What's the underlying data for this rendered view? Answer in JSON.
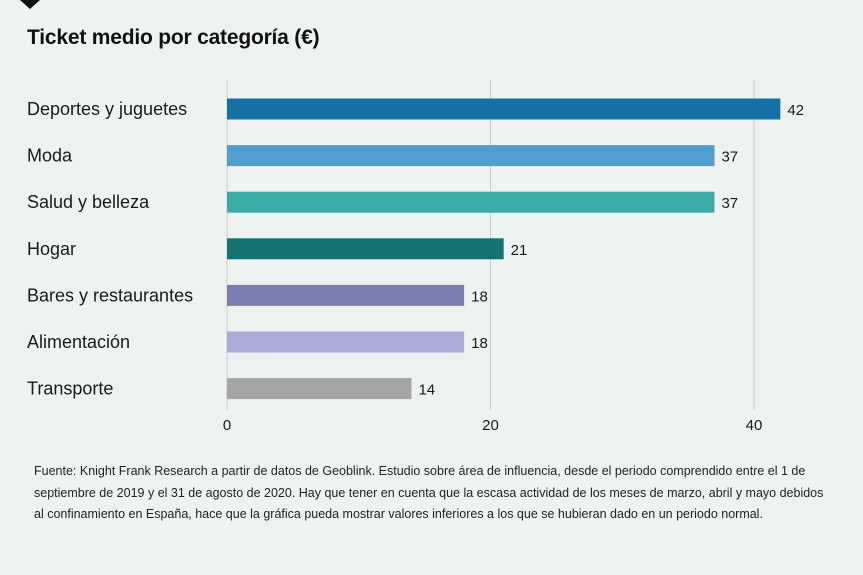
{
  "chart_data": {
    "type": "bar",
    "orientation": "horizontal",
    "title": "Ticket medio por categoría (€)",
    "categories": [
      "Deportes y juguetes",
      "Moda",
      "Salud y belleza",
      "Hogar",
      "Bares y restaurantes",
      "Alimentación",
      "Transporte"
    ],
    "values": [
      42,
      37,
      37,
      21,
      18,
      18,
      14
    ],
    "value_labels": [
      "42",
      "37",
      "37",
      "21",
      "18",
      "18",
      "14"
    ],
    "colors": [
      "#1570a6",
      "#4f9fd3",
      "#3aaba5",
      "#157472",
      "#7b7fb0",
      "#a8aad9",
      "#a5a5a8"
    ],
    "xlim": [
      0,
      45
    ],
    "xticks": [
      0,
      20,
      40
    ],
    "xtick_labels": [
      "0",
      "20",
      "40"
    ],
    "grid": true,
    "grid_color": "#c8cfcc"
  },
  "footnote": "Fuente: Knight Frank Research a partir de datos de Geoblink. Estudio sobre área de influencia, desde el periodo comprendido entre el 1 de septiembre de 2019 y el 31 de agosto de 2020. Hay que tener en cuenta que la escasa actividad de los meses de marzo, abril y mayo debidos al confinamiento en España, hace que la gráfica pueda mostrar valores inferiores a los que se hubieran dado en un periodo normal.",
  "colors": {
    "background": "#eef3f1",
    "text": "#1a1a1a"
  }
}
